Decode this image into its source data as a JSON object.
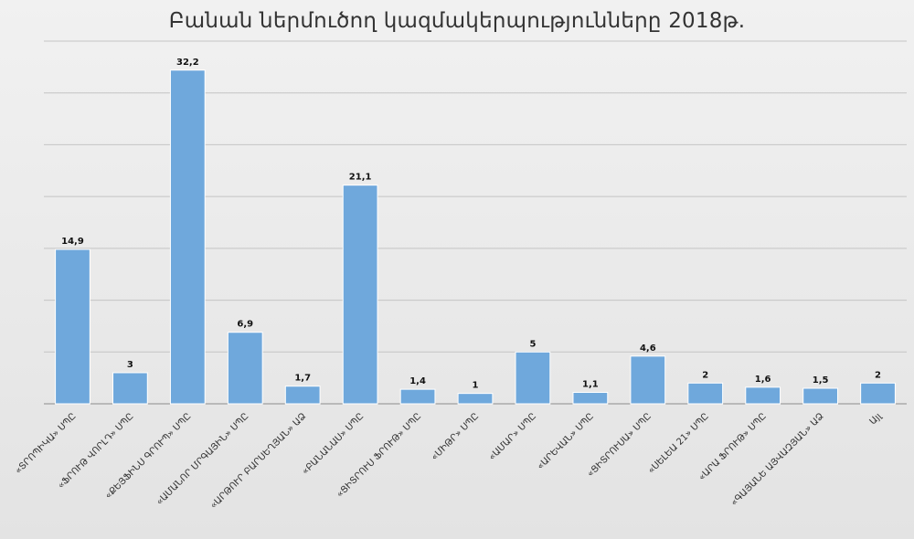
{
  "chart_data": {
    "type": "bar",
    "title": "Բանան ներմուծող կազմակերպությունները 2018թ.",
    "xlabel": "",
    "ylabel": "",
    "ylim": [
      0,
      35
    ],
    "grid": true,
    "legend": "none",
    "bar_color": "#6fa8dc",
    "categories": [
      "«ՏՐՈՊԻԿԱ» ՍՊԸ",
      "«ՖՐՈՒԹ ՎՈՐԼԴ» ՍՊԸ",
      "«ՔԵՅՖԻՆՍ ԳՐՈՒՊ» ՍՊԸ",
      "«ԱՄԱՆՈՐ ՄՐԳԱՅԻՆ» ՍՊԸ",
      "«ԱՐԹՈՒՐ ԲԱՐՍԵՂՅԱՆ» ԱՁ",
      "«ԲԱՆԱՆԱՍ» ՍՊԸ",
      "«ՑԻՏՐՈՒՍ ՖՐՈՒԹ» ՍՊԸ",
      "«ՄԻԹՐ» ՍՊԸ",
      "«ԱՄԱՐ» ՍՊԸ",
      "«ԱՐԵՎԱՆ» ՍՊԸ",
      "«ՑԻՏՐՈՒՍԱ» ՍՊԸ",
      "«ՍԵԼԵԱ 21» ՍՊԸ",
      "«ԱՐԱ ՖՐՈՒԹ» ՍՊԸ",
      "«ԳԱՅԱՆԵ ԱՅՎԱԶՅԱՆ» ԱՁ",
      "Այլ"
    ],
    "values": [
      14.9,
      3,
      32.2,
      6.9,
      1.7,
      21.1,
      1.4,
      1,
      5,
      1.1,
      4.6,
      2,
      1.6,
      1.5,
      2
    ],
    "value_labels": [
      "14,9",
      "3",
      "32,2",
      "6,9",
      "1,7",
      "21,1",
      "1,4",
      "1",
      "5",
      "1,1",
      "4,6",
      "2",
      "1,6",
      "1,5",
      "2"
    ]
  }
}
